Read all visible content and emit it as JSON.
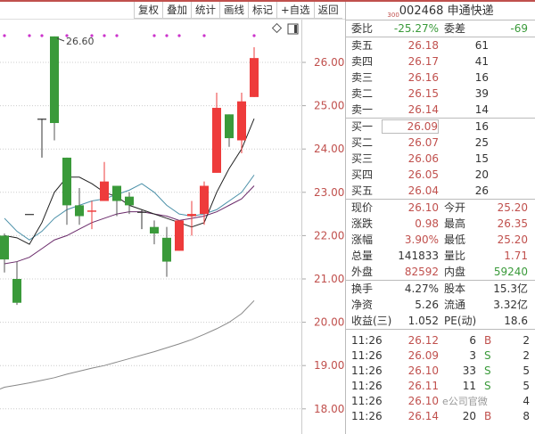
{
  "toolbar": {
    "buttons": [
      "复权",
      "叠加",
      "统计",
      "画线",
      "标记",
      "+自选",
      "返回"
    ]
  },
  "header": {
    "market_tag": "300",
    "code": "002468",
    "name": "申通快递"
  },
  "committee": {
    "ratio_label": "委比",
    "ratio": "-25.27%",
    "diff_label": "委差",
    "diff": "-69"
  },
  "sell": [
    {
      "label": "卖五",
      "price": "26.18",
      "vol": "61"
    },
    {
      "label": "卖四",
      "price": "26.17",
      "vol": "41"
    },
    {
      "label": "卖三",
      "price": "26.16",
      "vol": "16"
    },
    {
      "label": "卖二",
      "price": "26.15",
      "vol": "39"
    },
    {
      "label": "卖一",
      "price": "26.14",
      "vol": "14"
    }
  ],
  "buy": [
    {
      "label": "买一",
      "price": "26.09",
      "vol": "16"
    },
    {
      "label": "买二",
      "price": "26.07",
      "vol": "25"
    },
    {
      "label": "买三",
      "price": "26.06",
      "vol": "15"
    },
    {
      "label": "买四",
      "price": "26.05",
      "vol": "20"
    },
    {
      "label": "买五",
      "price": "26.04",
      "vol": "26"
    }
  ],
  "stats": [
    {
      "l1": "现价",
      "v1": "26.10",
      "c1": "red",
      "l2": "今开",
      "v2": "25.20",
      "c2": "red"
    },
    {
      "l1": "涨跌",
      "v1": "0.98",
      "c1": "red",
      "l2": "最高",
      "v2": "26.35",
      "c2": "red"
    },
    {
      "l1": "涨幅",
      "v1": "3.90%",
      "c1": "red",
      "l2": "最低",
      "v2": "25.20",
      "c2": "red"
    },
    {
      "l1": "总量",
      "v1": "141833",
      "c1": "",
      "l2": "量比",
      "v2": "1.71",
      "c2": "red"
    },
    {
      "l1": "外盘",
      "v1": "82592",
      "c1": "red",
      "l2": "内盘",
      "v2": "59240",
      "c2": "green"
    }
  ],
  "stats2": [
    {
      "l1": "换手",
      "v1": "4.27%",
      "l2": "股本",
      "v2": "15.3亿"
    },
    {
      "l1": "净资",
      "v1": "5.26",
      "l2": "流通",
      "v2": "3.32亿"
    },
    {
      "l1": "收益(三)",
      "v1": "1.052",
      "l2": "PE(动)",
      "v2": "18.6"
    }
  ],
  "trades": [
    {
      "time": "11:26",
      "price": "26.12",
      "vol": "6",
      "side": "B",
      "count": "2"
    },
    {
      "time": "11:26",
      "price": "26.09",
      "vol": "3",
      "side": "S",
      "count": "2"
    },
    {
      "time": "11:26",
      "price": "26.10",
      "vol": "33",
      "side": "S",
      "count": "5"
    },
    {
      "time": "11:26",
      "price": "26.11",
      "vol": "11",
      "side": "S",
      "count": "5"
    },
    {
      "time": "11:26",
      "price": "26.10",
      "vol": "",
      "side": "",
      "count": "4"
    },
    {
      "time": "11:26",
      "price": "26.14",
      "vol": "20",
      "side": "B",
      "count": "8"
    }
  ],
  "watermark": "e公司官微",
  "colors": {
    "up": "#ee3b3b",
    "down": "#3a9a3a",
    "axis_text": "#c0504d",
    "ma5": "#222222",
    "ma10": "#4a90a8",
    "ma20": "#6a2a6a",
    "ma60": "#888888",
    "marker": "#cc33cc"
  },
  "chart_data": {
    "type": "candlestick",
    "ylim": [
      17.8,
      26.8
    ],
    "y_ticks": [
      "26.00",
      "25.00",
      "24.00",
      "23.00",
      "22.00",
      "21.00",
      "20.00",
      "19.00",
      "18.00"
    ],
    "grid": true,
    "high_label": "26.60",
    "candles": [
      {
        "o": 22.0,
        "c": 21.45,
        "h": 22.05,
        "l": 21.15
      },
      {
        "o": 21.0,
        "c": 20.45,
        "h": 21.4,
        "l": 20.4
      },
      {
        "o": 22.5,
        "c": 22.5,
        "h": 22.5,
        "l": 22.5
      },
      {
        "o": 24.7,
        "c": 24.7,
        "h": 24.7,
        "l": 23.8
      },
      {
        "o": 26.6,
        "c": 24.6,
        "h": 26.6,
        "l": 24.2
      },
      {
        "o": 23.8,
        "c": 22.7,
        "h": 23.8,
        "l": 22.25
      },
      {
        "o": 22.7,
        "c": 22.45,
        "h": 23.1,
        "l": 22.25
      },
      {
        "o": 22.55,
        "c": 22.58,
        "h": 22.8,
        "l": 22.15
      },
      {
        "o": 22.8,
        "c": 23.25,
        "h": 23.7,
        "l": 22.8
      },
      {
        "o": 23.15,
        "c": 22.8,
        "h": 23.15,
        "l": 22.45
      },
      {
        "o": 22.9,
        "c": 22.7,
        "h": 23.0,
        "l": 22.5
      },
      {
        "o": 22.55,
        "c": 22.55,
        "h": 22.6,
        "l": 22.15
      },
      {
        "o": 22.2,
        "c": 22.05,
        "h": 22.35,
        "l": 21.8
      },
      {
        "o": 21.95,
        "c": 21.4,
        "h": 22.2,
        "l": 21.05
      },
      {
        "o": 21.65,
        "c": 22.35,
        "h": 22.35,
        "l": 21.65
      },
      {
        "o": 22.45,
        "c": 22.5,
        "h": 22.8,
        "l": 22.0
      },
      {
        "o": 22.5,
        "c": 23.15,
        "h": 23.25,
        "l": 22.25
      },
      {
        "o": 23.45,
        "c": 24.95,
        "h": 25.3,
        "l": 23.45
      },
      {
        "o": 24.8,
        "c": 24.25,
        "h": 24.8,
        "l": 24.05
      },
      {
        "o": 24.2,
        "c": 25.1,
        "h": 25.3,
        "l": 23.9
      },
      {
        "o": 25.2,
        "c": 26.1,
        "h": 26.35,
        "l": 25.2
      }
    ],
    "ma5": [
      22.0,
      21.95,
      21.8,
      22.3,
      23.0,
      23.35,
      23.35,
      23.2,
      23.0,
      22.9,
      22.7,
      22.6,
      22.5,
      22.4,
      22.3,
      22.2,
      22.3,
      23.0,
      23.55,
      24.0,
      24.7
    ],
    "ma10": [
      22.4,
      22.1,
      21.9,
      22.1,
      22.4,
      22.6,
      22.7,
      22.8,
      22.85,
      22.95,
      23.05,
      23.2,
      23.0,
      22.7,
      22.5,
      22.45,
      22.5,
      22.6,
      22.8,
      23.0,
      23.4
    ],
    "ma20": [
      21.35,
      21.4,
      21.5,
      21.7,
      21.9,
      22.0,
      22.15,
      22.3,
      22.4,
      22.5,
      22.55,
      22.55,
      22.5,
      22.45,
      22.35,
      22.4,
      22.45,
      22.55,
      22.7,
      22.85,
      23.15
    ],
    "ma60": [
      18.5,
      18.55,
      18.6,
      18.66,
      18.72,
      18.8,
      18.87,
      18.94,
      19.0,
      19.08,
      19.16,
      19.24,
      19.32,
      19.41,
      19.5,
      19.6,
      19.72,
      19.85,
      20.0,
      20.2,
      20.5
    ],
    "markers": [
      0,
      2,
      3,
      5,
      7,
      8,
      9,
      12,
      13,
      14,
      16,
      20
    ]
  }
}
